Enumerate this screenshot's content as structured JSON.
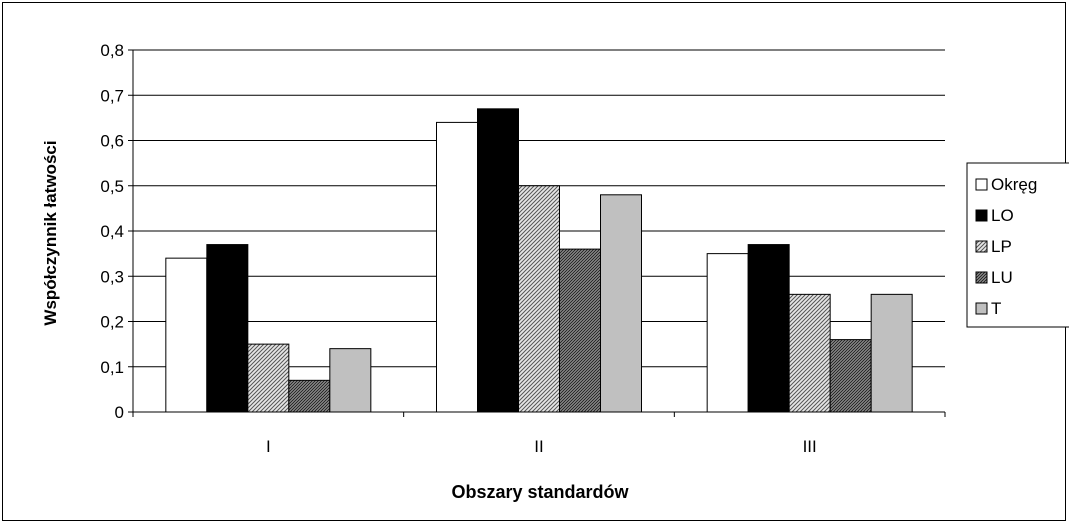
{
  "chart_data": {
    "type": "bar",
    "title": "",
    "xlabel": "Obszary standardów",
    "ylabel": "Współczynnik łatwości",
    "ylim": [
      0,
      0.8
    ],
    "yticks": [
      "0",
      "0,1",
      "0,2",
      "0,3",
      "0,4",
      "0,5",
      "0,6",
      "0,7",
      "0,8"
    ],
    "grid": true,
    "legend_position": "right",
    "categories": [
      "I",
      "II",
      "III"
    ],
    "series": [
      {
        "name": "Okręg",
        "values": [
          0.34,
          0.64,
          0.35
        ],
        "pattern": "white"
      },
      {
        "name": "LO",
        "values": [
          0.37,
          0.67,
          0.37
        ],
        "pattern": "black"
      },
      {
        "name": "LP",
        "values": [
          0.15,
          0.5,
          0.26
        ],
        "pattern": "diag-light"
      },
      {
        "name": "LU",
        "values": [
          0.07,
          0.36,
          0.16
        ],
        "pattern": "diag-dark"
      },
      {
        "name": "T",
        "values": [
          0.14,
          0.48,
          0.26
        ],
        "pattern": "gray"
      }
    ]
  }
}
